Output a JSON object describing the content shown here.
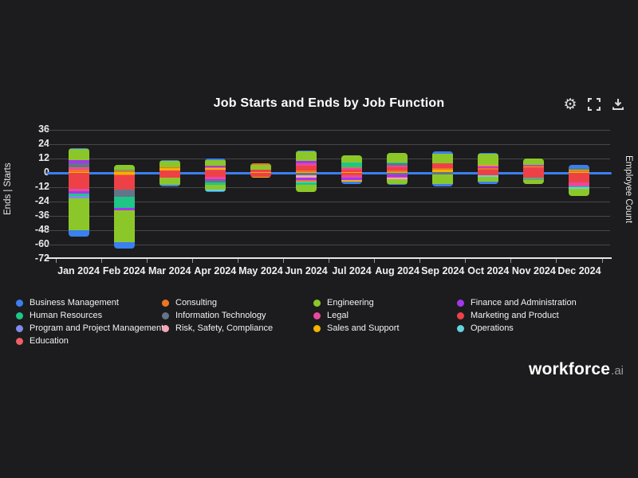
{
  "title": "Job Starts and Ends by Job Function",
  "toolbar": {
    "icons": [
      "settings",
      "fullscreen",
      "download"
    ]
  },
  "brand": {
    "name": "workforce",
    "tld": ".ai"
  },
  "legend": {
    "items": [
      {
        "label": "Business Management",
        "color": "#3b7ff0"
      },
      {
        "label": "Consulting",
        "color": "#ef7422"
      },
      {
        "label": "Engineering",
        "color": "#8cc72a"
      },
      {
        "label": "Finance and Administration",
        "color": "#a337ec"
      },
      {
        "label": "Human Resources",
        "color": "#1fc686"
      },
      {
        "label": "Information Technology",
        "color": "#62758a"
      },
      {
        "label": "Legal",
        "color": "#e8489d"
      },
      {
        "label": "Marketing and Product",
        "color": "#ee4147"
      },
      {
        "label": "Program and Project Management",
        "color": "#7f8bea"
      },
      {
        "label": "Risk, Safety, Compliance",
        "color": "#f2a5b2"
      },
      {
        "label": "Sales and Support",
        "color": "#f3b301"
      },
      {
        "label": "Operations",
        "color": "#63d3dd"
      },
      {
        "label": "Education",
        "color": "#ef5f66"
      }
    ]
  },
  "chart_data": {
    "type": "bar",
    "stacked": true,
    "diverging": true,
    "title": "Job Starts and Ends by Job Function",
    "ylabel_left": "Ends | Starts",
    "ylabel_right": "Employee Count",
    "ylim": [
      -72,
      44
    ],
    "y_ticks": [
      36,
      24,
      12,
      0,
      -12,
      -24,
      -36,
      -48,
      -60,
      -72
    ],
    "grid": true,
    "zero_line_color": "#3b7ff0",
    "x": [
      "Jan 2024",
      "Feb 2024",
      "Mar 2024",
      "Apr 2024",
      "May 2024",
      "Jun 2024",
      "Jul 2024",
      "Aug 2024",
      "Sep 2024",
      "Oct 2024",
      "Nov 2024",
      "Dec 2024"
    ],
    "note": "starts are positive stacks (zero to top order), ends are negative stacks (zero to bottom order); values estimated from gridlines",
    "months": [
      {
        "month": "Jan 2024",
        "starts": [
          [
            "Sales and Support",
            1
          ],
          [
            "Consulting",
            2
          ],
          [
            "Legal",
            1
          ],
          [
            "Education",
            1
          ],
          [
            "Information Technology",
            3
          ],
          [
            "Finance and Administration",
            3
          ],
          [
            "Engineering",
            9
          ],
          [
            "Business Management",
            1
          ]
        ],
        "ends": [
          [
            "Marketing and Product",
            13
          ],
          [
            "Legal",
            2
          ],
          [
            "Finance and Administration",
            2
          ],
          [
            "Human Resources",
            2
          ],
          [
            "Program and Project Management",
            2
          ],
          [
            "Engineering",
            27
          ],
          [
            "Business Management",
            5
          ]
        ]
      },
      {
        "month": "Feb 2024",
        "starts": [
          [
            "Sales and Support",
            1
          ],
          [
            "Consulting",
            1
          ],
          [
            "Human Resources",
            1
          ],
          [
            "Engineering",
            4
          ]
        ],
        "ends": [
          [
            "Sales and Support",
            1
          ],
          [
            "Consulting",
            1
          ],
          [
            "Marketing and Product",
            12
          ],
          [
            "Information Technology",
            6
          ],
          [
            "Human Resources",
            9
          ],
          [
            "Finance and Administration",
            2
          ],
          [
            "Engineering",
            27
          ],
          [
            "Business Management",
            5
          ]
        ]
      },
      {
        "month": "Mar 2024",
        "starts": [
          [
            "Marketing and Product",
            2
          ],
          [
            "Sales and Support",
            2
          ],
          [
            "Consulting",
            1
          ],
          [
            "Engineering",
            5
          ],
          [
            "Business Management",
            1
          ]
        ],
        "ends": [
          [
            "Marketing and Product",
            4
          ],
          [
            "Engineering",
            6
          ],
          [
            "Business Management",
            1
          ]
        ]
      },
      {
        "month": "Apr 2024",
        "starts": [
          [
            "Marketing and Product",
            2
          ],
          [
            "Legal",
            1
          ],
          [
            "Sales and Support",
            1
          ],
          [
            "Consulting",
            1
          ],
          [
            "Finance and Administration",
            1
          ],
          [
            "Engineering",
            5
          ],
          [
            "Business Management",
            1
          ]
        ],
        "ends": [
          [
            "Marketing and Product",
            3
          ],
          [
            "Legal",
            2
          ],
          [
            "Finance and Administration",
            1
          ],
          [
            "Information Technology",
            2
          ],
          [
            "Human Resources",
            2
          ],
          [
            "Engineering",
            4
          ],
          [
            "Operations",
            1
          ],
          [
            "Business Management",
            1
          ]
        ]
      },
      {
        "month": "May 2024",
        "starts": [
          [
            "Sales and Support",
            1
          ],
          [
            "Marketing and Product",
            2
          ],
          [
            "Engineering",
            4
          ],
          [
            "Consulting",
            1
          ]
        ],
        "ends": [
          [
            "Marketing and Product",
            3
          ],
          [
            "Sales and Support",
            1
          ]
        ]
      },
      {
        "month": "Jun 2024",
        "starts": [
          [
            "Sales and Support",
            1
          ],
          [
            "Consulting",
            1
          ],
          [
            "Marketing and Product",
            4
          ],
          [
            "Legal",
            2
          ],
          [
            "Finance and Administration",
            2
          ],
          [
            "Engineering",
            8
          ],
          [
            "Business Management",
            1
          ]
        ],
        "ends": [
          [
            "Information Technology",
            2
          ],
          [
            "Risk, Safety, Compliance",
            2
          ],
          [
            "Finance and Administration",
            2
          ],
          [
            "Consulting",
            1
          ],
          [
            "Operations",
            1
          ],
          [
            "Human Resources",
            2
          ],
          [
            "Engineering",
            6
          ]
        ]
      },
      {
        "month": "Jul 2024",
        "starts": [
          [
            "Sales and Support",
            1
          ],
          [
            "Marketing and Product",
            2
          ],
          [
            "Legal",
            1
          ],
          [
            "Consulting",
            1
          ],
          [
            "Human Resources",
            4
          ],
          [
            "Engineering",
            6
          ]
        ],
        "ends": [
          [
            "Marketing and Product",
            2
          ],
          [
            "Legal",
            2
          ],
          [
            "Finance and Administration",
            2
          ],
          [
            "Sales and Support",
            1
          ],
          [
            "Business Management",
            2
          ]
        ]
      },
      {
        "month": "Aug 2024",
        "starts": [
          [
            "Sales and Support",
            1
          ],
          [
            "Consulting",
            1
          ],
          [
            "Marketing and Product",
            3
          ],
          [
            "Legal",
            1
          ],
          [
            "Information Technology",
            2
          ],
          [
            "Human Resources",
            1
          ],
          [
            "Engineering",
            8
          ]
        ],
        "ends": [
          [
            "Information Technology",
            1
          ],
          [
            "Finance and Administration",
            2
          ],
          [
            "Legal",
            1
          ],
          [
            "Risk, Safety, Compliance",
            1
          ],
          [
            "Engineering",
            4
          ],
          [
            "Business Management",
            1
          ]
        ]
      },
      {
        "month": "Sep 2024",
        "starts": [
          [
            "Information Technology",
            1
          ],
          [
            "Sales and Support",
            2
          ],
          [
            "Consulting",
            1
          ],
          [
            "Marketing and Product",
            4
          ],
          [
            "Engineering",
            8
          ],
          [
            "Business Management",
            2
          ]
        ],
        "ends": [
          [
            "Information Technology",
            1
          ],
          [
            "Engineering",
            8
          ],
          [
            "Business Management",
            2
          ]
        ]
      },
      {
        "month": "Oct 2024",
        "starts": [
          [
            "Marketing and Product",
            3
          ],
          [
            "Consulting",
            1
          ],
          [
            "Finance and Administration",
            1
          ],
          [
            "Legal",
            1
          ],
          [
            "Sales and Support",
            1
          ],
          [
            "Engineering",
            9
          ],
          [
            "Business Management",
            1
          ]
        ],
        "ends": [
          [
            "Marketing and Product",
            2
          ],
          [
            "Operations",
            1
          ],
          [
            "Engineering",
            4
          ],
          [
            "Business Management",
            2
          ]
        ]
      },
      {
        "month": "Nov 2024",
        "starts": [
          [
            "Marketing and Product",
            4
          ],
          [
            "Legal",
            1
          ],
          [
            "Consulting",
            1
          ],
          [
            "Finance and Administration",
            1
          ],
          [
            "Engineering",
            5
          ]
        ],
        "ends": [
          [
            "Marketing and Product",
            4
          ],
          [
            "Human Resources",
            1
          ],
          [
            "Education",
            1
          ],
          [
            "Engineering",
            3
          ]
        ]
      },
      {
        "month": "Dec 2024",
        "starts": [
          [
            "Sales and Support",
            1
          ],
          [
            "Consulting",
            1
          ],
          [
            "Engineering",
            1
          ],
          [
            "Information Technology",
            1
          ],
          [
            "Business Management",
            3
          ]
        ],
        "ends": [
          [
            "Marketing and Product",
            8
          ],
          [
            "Legal",
            3
          ],
          [
            "Human Resources",
            1
          ],
          [
            "Operations",
            1
          ],
          [
            "Engineering",
            6
          ]
        ]
      }
    ]
  }
}
